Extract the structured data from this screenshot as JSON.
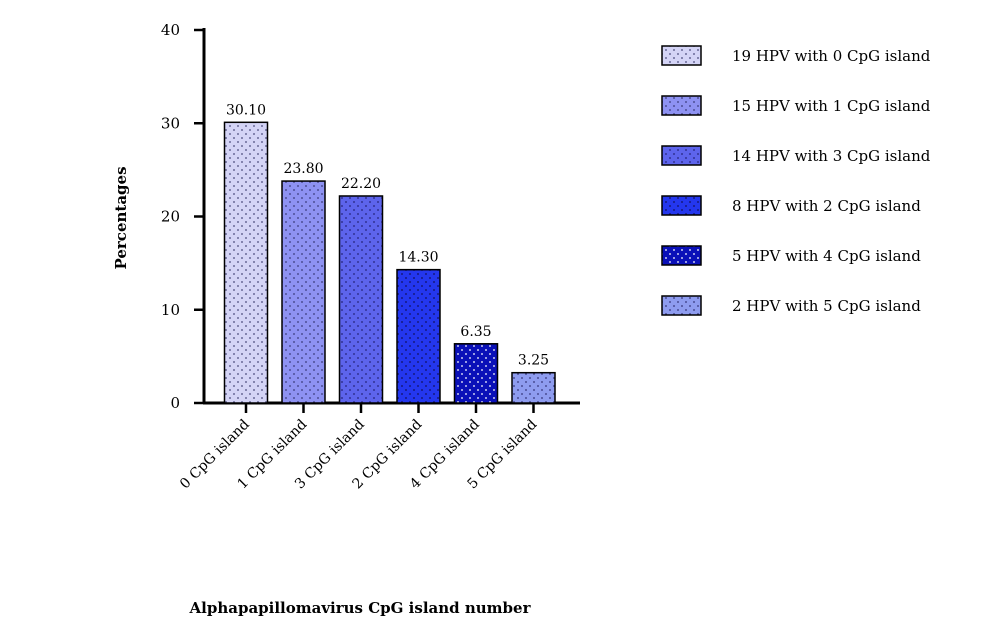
{
  "chart_data": {
    "type": "bar",
    "categories": [
      "0 CpG island",
      "1 CpG island",
      "3 CpG island",
      "2 CpG island",
      "4 CpG island",
      "5 CpG island"
    ],
    "values": [
      30.1,
      23.8,
      22.2,
      14.3,
      6.35,
      3.25
    ],
    "value_labels": [
      "30.10",
      "23.80",
      "22.20",
      "14.30",
      "6.35",
      "3.25"
    ],
    "legend": [
      "19 HPV with 0 CpG island",
      "15 HPV with 1 CpG island",
      "14 HPV with 3 CpG island",
      "8 HPV with 2 CpG island",
      "5 HPV with 4 CpG island",
      "2 HPV with 5 CpG island"
    ],
    "colors": [
      "#d4d4f6",
      "#8e92f2",
      "#5d64ec",
      "#2437ee",
      "#0a10b8",
      "#8e9cef"
    ],
    "dot_colors": [
      "#4a4a7a",
      "#3a3a7a",
      "#23237a",
      "#101060",
      "#ffffff",
      "#34347a"
    ],
    "xlabel": "Alphapapillomavirus CpG island number",
    "ylabel": "Percentages",
    "ylim": [
      0,
      40
    ],
    "yticks": [
      "0",
      "10",
      "20",
      "30",
      "40"
    ],
    "grid": false,
    "legend_position": "right"
  }
}
